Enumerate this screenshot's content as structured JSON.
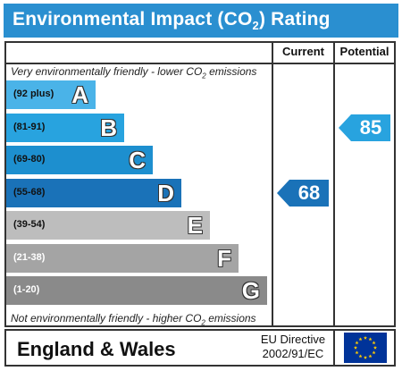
{
  "header": {
    "title_pre": "Environmental Impact (CO",
    "title_sub": "2",
    "title_post": ") Rating",
    "color": "#2a8fd0"
  },
  "columns": {
    "current": "Current",
    "potential": "Potential"
  },
  "captions": {
    "top_pre": "Very environmentally friendly - lower CO",
    "top_sub": "2",
    "top_post": " emissions",
    "bottom_pre": "Not environmentally friendly - higher CO",
    "bottom_sub": "2",
    "bottom_post": " emissions"
  },
  "chart_data": {
    "type": "table",
    "title": "Environmental Impact (CO2) Rating",
    "bands": [
      {
        "letter": "A",
        "range": "(92 plus)",
        "color": "#4ab3e8",
        "range_color": "#111111"
      },
      {
        "letter": "B",
        "range": "(81-91)",
        "color": "#28a3df",
        "range_color": "#111111"
      },
      {
        "letter": "C",
        "range": "(69-80)",
        "color": "#1d8fcf",
        "range_color": "#111111"
      },
      {
        "letter": "D",
        "range": "(55-68)",
        "color": "#1a72b8",
        "range_color": "#111111"
      },
      {
        "letter": "E",
        "range": "(39-54)",
        "color": "#bdbdbd",
        "range_color": "#111111"
      },
      {
        "letter": "F",
        "range": "(21-38)",
        "color": "#a4a4a4",
        "range_color": "#ffffff"
      },
      {
        "letter": "G",
        "range": "(1-20)",
        "color": "#8a8a8a",
        "range_color": "#ffffff"
      }
    ],
    "current": {
      "value": 68,
      "label": "68",
      "band": "D"
    },
    "potential": {
      "value": 85,
      "label": "85",
      "band": "B"
    }
  },
  "footer": {
    "region": "England & Wales",
    "directive_line1": "EU Directive",
    "directive_line2": "2002/91/EC",
    "flag_icon": "eu-flag-icon",
    "flag_color": "#003399",
    "star_color": "#ffcc00"
  }
}
